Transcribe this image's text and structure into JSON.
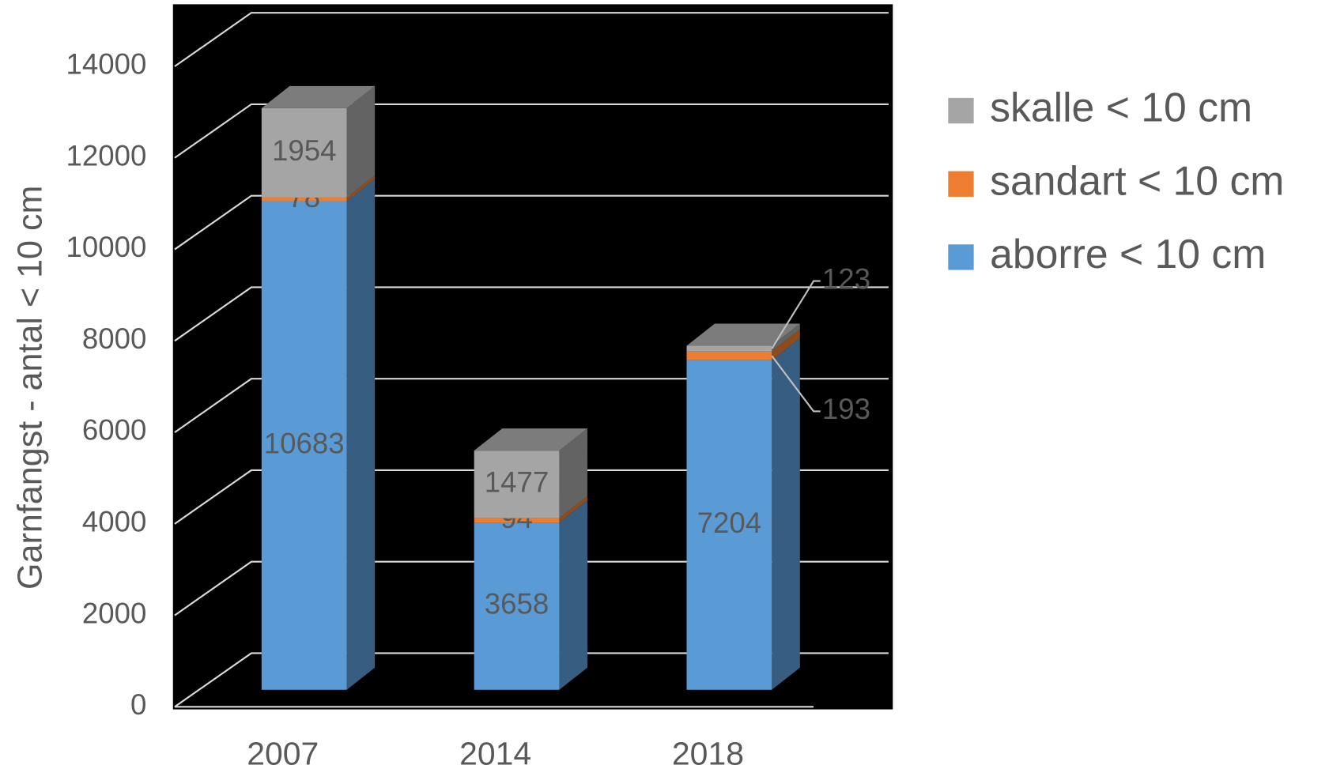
{
  "chart_data": {
    "type": "bar3d-stacked",
    "y_label": "Garnfangst - antal < 10 cm",
    "categories": [
      "2007",
      "2014",
      "2018"
    ],
    "series": [
      {
        "name": "aborre < 10 cm",
        "color": "#5b9bd5",
        "values": [
          10683,
          3658,
          7204
        ]
      },
      {
        "name": "sandart < 10 cm",
        "color": "#ed7d31",
        "values": [
          78,
          94,
          193
        ]
      },
      {
        "name": "skalle < 10 cm",
        "color": "#a5a5a5",
        "values": [
          1954,
          1477,
          123
        ]
      }
    ],
    "ylim": [
      0,
      14000
    ],
    "yticks": [
      0,
      2000,
      4000,
      6000,
      8000,
      10000,
      12000,
      14000
    ],
    "grid": true,
    "legend": "right"
  }
}
